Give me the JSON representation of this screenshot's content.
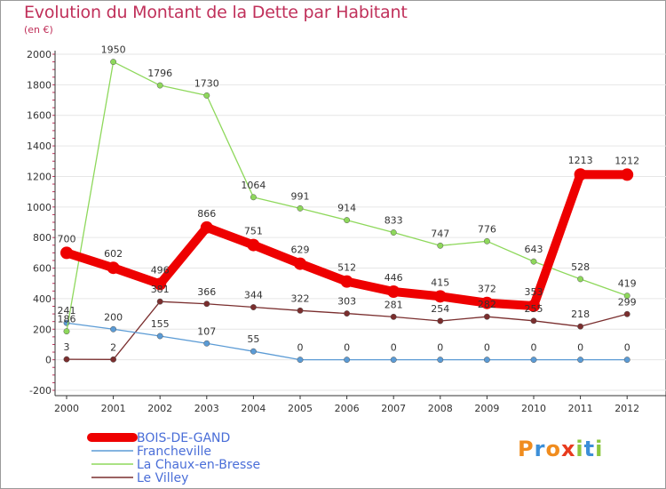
{
  "title": "Evolution du Montant de la Dette par Habitant",
  "subtitle": "(en €)",
  "colors": {
    "title": "#c0305a",
    "grid": "#e6e6e6",
    "axis": "#333333"
  },
  "logo": {
    "letters": [
      "P",
      "r",
      "o",
      "x",
      "i",
      "t",
      "i"
    ],
    "colors": [
      "#f08c1e",
      "#3c8fd8",
      "#f08c1e",
      "#e83b1e",
      "#8cc63f",
      "#3c8fd8",
      "#8cc63f"
    ]
  },
  "chart_data": {
    "type": "line",
    "title": "Evolution du Montant de la Dette par Habitant",
    "subtitle": "(en €)",
    "x": [
      "2000",
      "2001",
      "2002",
      "2003",
      "2004",
      "2005",
      "2006",
      "2007",
      "2008",
      "2009",
      "2010",
      "2011",
      "2012"
    ],
    "yticks": [
      -200,
      0,
      200,
      400,
      600,
      800,
      1000,
      1200,
      1400,
      1600,
      1800,
      2000
    ],
    "ylim": [
      -200,
      2000
    ],
    "grid": true,
    "legend_position": "bottom-left",
    "series": [
      {
        "name": "BOIS-DE-GAND",
        "color": "#ee0000",
        "values": [
          700,
          602,
          496,
          866,
          751,
          629,
          512,
          446,
          415,
          372,
          353,
          1213,
          1212
        ],
        "labels": [
          "700",
          "602",
          "496",
          "866",
          "751",
          "629",
          "512",
          "446",
          "415",
          "372",
          "353",
          "1213",
          "1212"
        ]
      },
      {
        "name": "Francheville",
        "color": "#5b9bd5",
        "values": [
          241,
          200,
          155,
          107,
          55,
          0,
          0,
          0,
          0,
          0,
          0,
          0,
          0
        ],
        "labels": [
          "241",
          "200",
          "155",
          "107",
          "55",
          "0",
          "0",
          "0",
          "0",
          "0",
          "0",
          "0",
          "0"
        ]
      },
      {
        "name": "La Chaux-en-Bresse",
        "color": "#8ed85b",
        "values": [
          186,
          1950,
          1796,
          1730,
          1064,
          991,
          914,
          833,
          747,
          776,
          643,
          528,
          419
        ],
        "labels": [
          "186",
          "1950",
          "1796",
          "1730",
          "1064",
          "991",
          "914",
          "833",
          "747",
          "776",
          "643",
          "528",
          "419"
        ]
      },
      {
        "name": "Le Villey",
        "color": "#7a2e2e",
        "values": [
          3,
          2,
          381,
          366,
          344,
          322,
          303,
          281,
          254,
          282,
          255,
          218,
          299
        ],
        "labels": [
          "3",
          "2",
          "381",
          "366",
          "344",
          "322",
          "303",
          "281",
          "254",
          "282",
          "255",
          "218",
          "299"
        ]
      }
    ]
  }
}
